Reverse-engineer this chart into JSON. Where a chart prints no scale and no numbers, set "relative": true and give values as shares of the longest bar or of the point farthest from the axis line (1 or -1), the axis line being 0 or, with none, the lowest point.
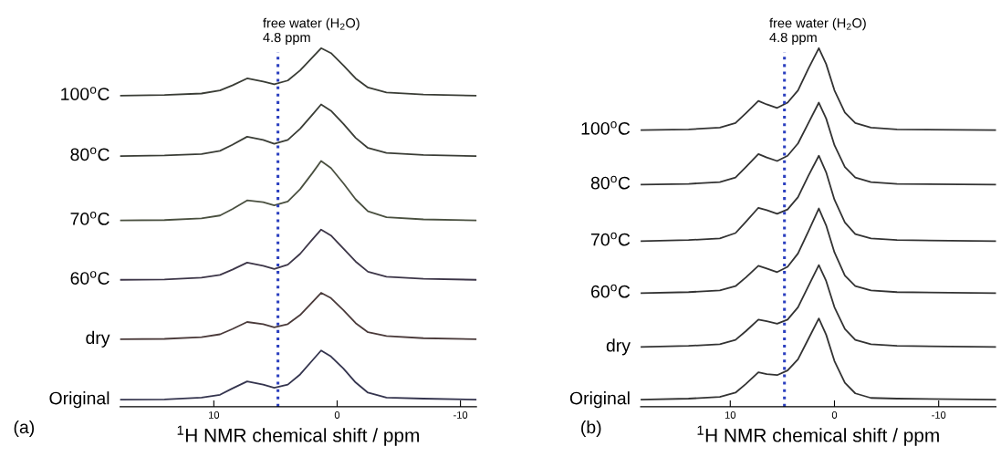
{
  "chart_data": [
    {
      "type": "line",
      "relative": true,
      "xlabel": "$^{1}$H NMR chemical shift / ppm",
      "annotations": [
        "(a)"
      ],
      "xlim": [
        17.6,
        -11.3
      ],
      "xticks": [
        10,
        0,
        -10
      ],
      "tick_labels": "x",
      "grid": false,
      "marker": "none",
      "line_style": "solid",
      "x": [
        17.6,
        14,
        11,
        9.5,
        8.5,
        7.3,
        6,
        5.1,
        4,
        3,
        2,
        1.3,
        0.5,
        -0.5,
        -1.5,
        -2.5,
        -4,
        -7,
        -11.3
      ],
      "ref_lines": [
        {
          "axis": "x",
          "value": 4.8,
          "label": "free water (H$_{2}$O)\n4.8 ppm",
          "color": "#2b3fbf",
          "line_style": "dotted"
        }
      ],
      "series": [
        {
          "name": "100$^{o}$C",
          "color": "#3a3d36",
          "values": [
            0.865,
            0.867,
            0.871,
            0.88,
            0.894,
            0.914,
            0.905,
            0.897,
            0.908,
            0.937,
            0.974,
            1.0,
            0.986,
            0.951,
            0.914,
            0.888,
            0.874,
            0.868,
            0.865
          ]
        },
        {
          "name": "80$^{o}$C",
          "color": "#3a3d36",
          "values": [
            0.693,
            0.695,
            0.699,
            0.708,
            0.725,
            0.748,
            0.739,
            0.728,
            0.739,
            0.771,
            0.811,
            0.84,
            0.822,
            0.785,
            0.745,
            0.716,
            0.702,
            0.696,
            0.693
          ]
        },
        {
          "name": "70$^{o}$C",
          "color": "#4a5040",
          "values": [
            0.51,
            0.511,
            0.516,
            0.524,
            0.542,
            0.567,
            0.562,
            0.553,
            0.564,
            0.599,
            0.645,
            0.679,
            0.659,
            0.616,
            0.57,
            0.536,
            0.519,
            0.513,
            0.51
          ]
        },
        {
          "name": "60$^{o}$C",
          "color": "#3d3648",
          "values": [
            0.341,
            0.342,
            0.347,
            0.355,
            0.37,
            0.39,
            0.381,
            0.372,
            0.384,
            0.415,
            0.456,
            0.484,
            0.467,
            0.43,
            0.393,
            0.364,
            0.35,
            0.344,
            0.341
          ]
        },
        {
          "name": "dry",
          "color": "#4a3a3a",
          "values": [
            0.172,
            0.173,
            0.178,
            0.186,
            0.201,
            0.221,
            0.215,
            0.206,
            0.215,
            0.241,
            0.278,
            0.304,
            0.289,
            0.255,
            0.218,
            0.192,
            0.181,
            0.175,
            0.172
          ]
        },
        {
          "name": "Original",
          "color": "#34344e",
          "values": [
            0,
            0.001,
            0.006,
            0.014,
            0.032,
            0.052,
            0.043,
            0.034,
            0.043,
            0.072,
            0.112,
            0.14,
            0.123,
            0.089,
            0.049,
            0.02,
            0.006,
            0.003,
            0
          ]
        }
      ]
    },
    {
      "type": "line",
      "relative": true,
      "xlabel": "$^{1}$H NMR chemical shift / ppm",
      "annotations": [
        "(b)"
      ],
      "xlim": [
        18.6,
        -15.5
      ],
      "xticks": [
        10,
        0,
        -10
      ],
      "tick_labels": "x",
      "grid": false,
      "marker": "none",
      "line_style": "solid",
      "x": [
        18.6,
        14,
        11,
        9.5,
        8.5,
        7.3,
        6.5,
        5.5,
        4.5,
        3.5,
        2.5,
        1.5,
        0.8,
        0,
        -1,
        -2,
        -3.5,
        -6,
        -15.5
      ],
      "ref_lines": [
        {
          "axis": "x",
          "value": 4.8,
          "label": "free water (H$_{2}$O)\n4.8 ppm",
          "color": "#2b3fbf",
          "line_style": "dotted"
        }
      ],
      "series": [
        {
          "name": "100$^{o}$C",
          "color": "#333333",
          "values": [
            0.767,
            0.769,
            0.774,
            0.787,
            0.815,
            0.85,
            0.84,
            0.83,
            0.845,
            0.88,
            0.942,
            1.0,
            0.955,
            0.88,
            0.817,
            0.787,
            0.774,
            0.769,
            0.767
          ]
        },
        {
          "name": "80$^{o}$C",
          "color": "#333333",
          "values": [
            0.612,
            0.614,
            0.619,
            0.632,
            0.662,
            0.699,
            0.689,
            0.679,
            0.694,
            0.729,
            0.787,
            0.845,
            0.8,
            0.724,
            0.662,
            0.632,
            0.619,
            0.614,
            0.612
          ]
        },
        {
          "name": "70$^{o}$C",
          "color": "#333333",
          "values": [
            0.451,
            0.454,
            0.459,
            0.474,
            0.506,
            0.546,
            0.539,
            0.529,
            0.541,
            0.576,
            0.637,
            0.694,
            0.647,
            0.569,
            0.504,
            0.471,
            0.459,
            0.454,
            0.451
          ]
        },
        {
          "name": "60$^{o}$C",
          "color": "#333333",
          "values": [
            0.303,
            0.306,
            0.311,
            0.323,
            0.348,
            0.381,
            0.373,
            0.363,
            0.378,
            0.416,
            0.479,
            0.544,
            0.496,
            0.419,
            0.353,
            0.323,
            0.311,
            0.306,
            0.303
          ]
        },
        {
          "name": "dry",
          "color": "#333333",
          "values": [
            0.15,
            0.153,
            0.158,
            0.17,
            0.195,
            0.228,
            0.223,
            0.216,
            0.228,
            0.263,
            0.323,
            0.383,
            0.338,
            0.263,
            0.201,
            0.17,
            0.158,
            0.153,
            0.15
          ]
        },
        {
          "name": "Original",
          "color": "#333333",
          "values": [
            0,
            0.003,
            0.008,
            0.02,
            0.045,
            0.078,
            0.073,
            0.07,
            0.083,
            0.115,
            0.173,
            0.231,
            0.185,
            0.11,
            0.048,
            0.018,
            0.005,
            0.003,
            0
          ]
        }
      ]
    }
  ]
}
